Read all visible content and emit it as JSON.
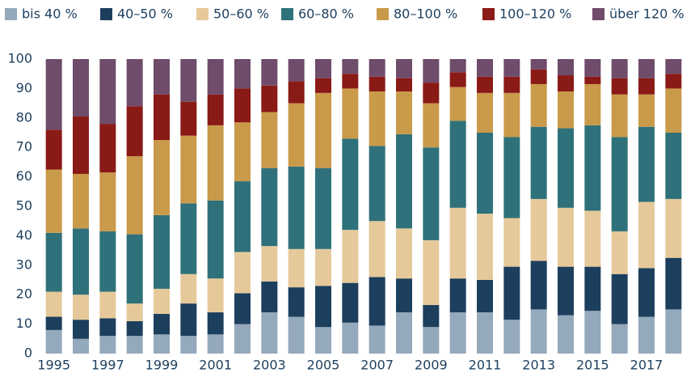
{
  "chart_data": {
    "type": "stacked_bar",
    "categories": [
      "1995",
      null,
      "1997",
      null,
      "1999",
      null,
      "2001",
      null,
      "2003",
      null,
      "2005",
      null,
      "2007",
      null,
      "2009",
      null,
      "2011",
      null,
      "2013",
      null,
      "2015",
      null,
      "2017",
      null
    ],
    "series": [
      {
        "name": "bis 40 %",
        "color": "#94a9bb",
        "values": [
          8,
          5,
          6,
          6,
          6.5,
          6,
          6.5,
          10,
          14,
          12.5,
          9,
          10.5,
          9.5,
          14,
          9,
          14,
          14,
          11.5,
          15,
          13,
          14.5,
          10,
          12.5,
          15
        ]
      },
      {
        "name": "40–50 %",
        "color": "#1d3f5e",
        "values": [
          4.5,
          6.5,
          6,
          5,
          7,
          11,
          7.5,
          10.5,
          10.5,
          10,
          14,
          13.5,
          16.5,
          11.5,
          7.5,
          11.5,
          11,
          18,
          16.5,
          16.5,
          15,
          17,
          16.5,
          17.5
        ]
      },
      {
        "name": "50–60 %",
        "color": "#e6c99a",
        "values": [
          8.5,
          8.5,
          9,
          6,
          8.5,
          10,
          11.5,
          14,
          12,
          13,
          12.5,
          18,
          19,
          17,
          22,
          24,
          22.5,
          16.5,
          21,
          20,
          19,
          14.5,
          22.5,
          20
        ]
      },
      {
        "name": "60–80 %",
        "color": "#2f717a",
        "values": [
          20,
          22.5,
          20.5,
          23.5,
          25,
          24,
          26.5,
          24,
          26.5,
          28,
          27.5,
          31,
          25.5,
          32,
          31.5,
          29.5,
          27.5,
          27.5,
          24.5,
          27,
          29,
          32,
          25.5,
          22.5
        ]
      },
      {
        "name": "80–100 %",
        "color": "#c99a4a",
        "values": [
          21.5,
          18.5,
          20,
          26.5,
          25.5,
          23,
          25.5,
          20,
          19,
          21.5,
          25.5,
          17,
          18.5,
          14.5,
          15,
          11.5,
          13.5,
          15,
          14.5,
          12.5,
          14,
          14.5,
          11,
          15
        ]
      },
      {
        "name": "100–120 %",
        "color": "#8a1a16",
        "values": [
          13.5,
          19.5,
          16.5,
          17,
          15.5,
          11.5,
          10.5,
          11.5,
          9,
          7.5,
          5,
          5,
          5,
          4.5,
          7,
          5,
          5.5,
          5.5,
          5,
          5.5,
          2.5,
          5.5,
          5.5,
          5
        ]
      },
      {
        "name": "über 120 %",
        "color": "#6e4c6a",
        "values": [
          24,
          19.5,
          22,
          16,
          12,
          14.5,
          12,
          10,
          9,
          7.5,
          6.5,
          5,
          6,
          6.5,
          8,
          4.5,
          6,
          6,
          3.5,
          5.5,
          6,
          6.5,
          6.5,
          5
        ]
      }
    ],
    "ylim": [
      0,
      100
    ],
    "yticks": [
      0,
      10,
      20,
      30,
      40,
      50,
      60,
      70,
      80,
      90,
      100
    ],
    "grid": false
  }
}
